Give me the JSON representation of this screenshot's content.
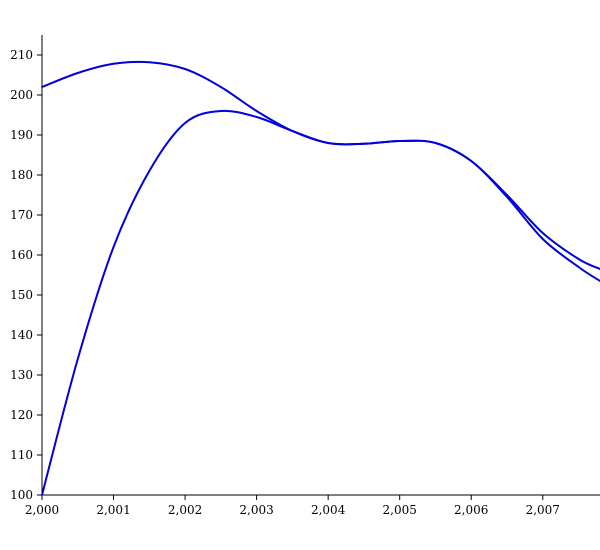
{
  "chart_data": {
    "type": "line",
    "title": "",
    "xlabel": "",
    "ylabel": "",
    "xlim": [
      2000,
      2007.8
    ],
    "ylim": [
      100,
      215
    ],
    "x_ticks": [
      2000,
      2001,
      2002,
      2003,
      2004,
      2005,
      2006,
      2007
    ],
    "x_tick_labels": [
      "2,000",
      "2,001",
      "2,002",
      "2,003",
      "2,004",
      "2,005",
      "2,006",
      "2,007"
    ],
    "y_ticks": [
      100,
      110,
      120,
      130,
      140,
      150,
      160,
      170,
      180,
      190,
      200,
      210
    ],
    "y_tick_labels": [
      "100",
      "110",
      "120",
      "130",
      "140",
      "150",
      "160",
      "170",
      "180",
      "190",
      "200",
      "210"
    ],
    "grid": false,
    "series": [
      {
        "color": "#0000dd",
        "x": [
          2000,
          2000.5,
          2001,
          2001.5,
          2002,
          2002.5,
          2003,
          2003.5,
          2004,
          2004.5,
          2005,
          2005.5,
          2006,
          2006.5,
          2007,
          2007.5,
          2007.8
        ],
        "y": [
          202,
          205.5,
          207.8,
          208.2,
          206.5,
          202,
          196,
          191,
          188,
          187.8,
          188.5,
          188,
          183.5,
          175,
          165.5,
          159,
          156.5
        ]
      },
      {
        "color": "#0000dd",
        "x": [
          2000,
          2000.5,
          2001,
          2001.5,
          2002,
          2002.5,
          2003,
          2003.5,
          2004,
          2004.5,
          2005,
          2005.5,
          2006,
          2006.5,
          2007,
          2007.5,
          2007.8
        ],
        "y": [
          100,
          134,
          162,
          181,
          193,
          196,
          194.5,
          191,
          188,
          187.8,
          188.5,
          188,
          183.5,
          174.5,
          164,
          157,
          153.5
        ]
      }
    ]
  }
}
